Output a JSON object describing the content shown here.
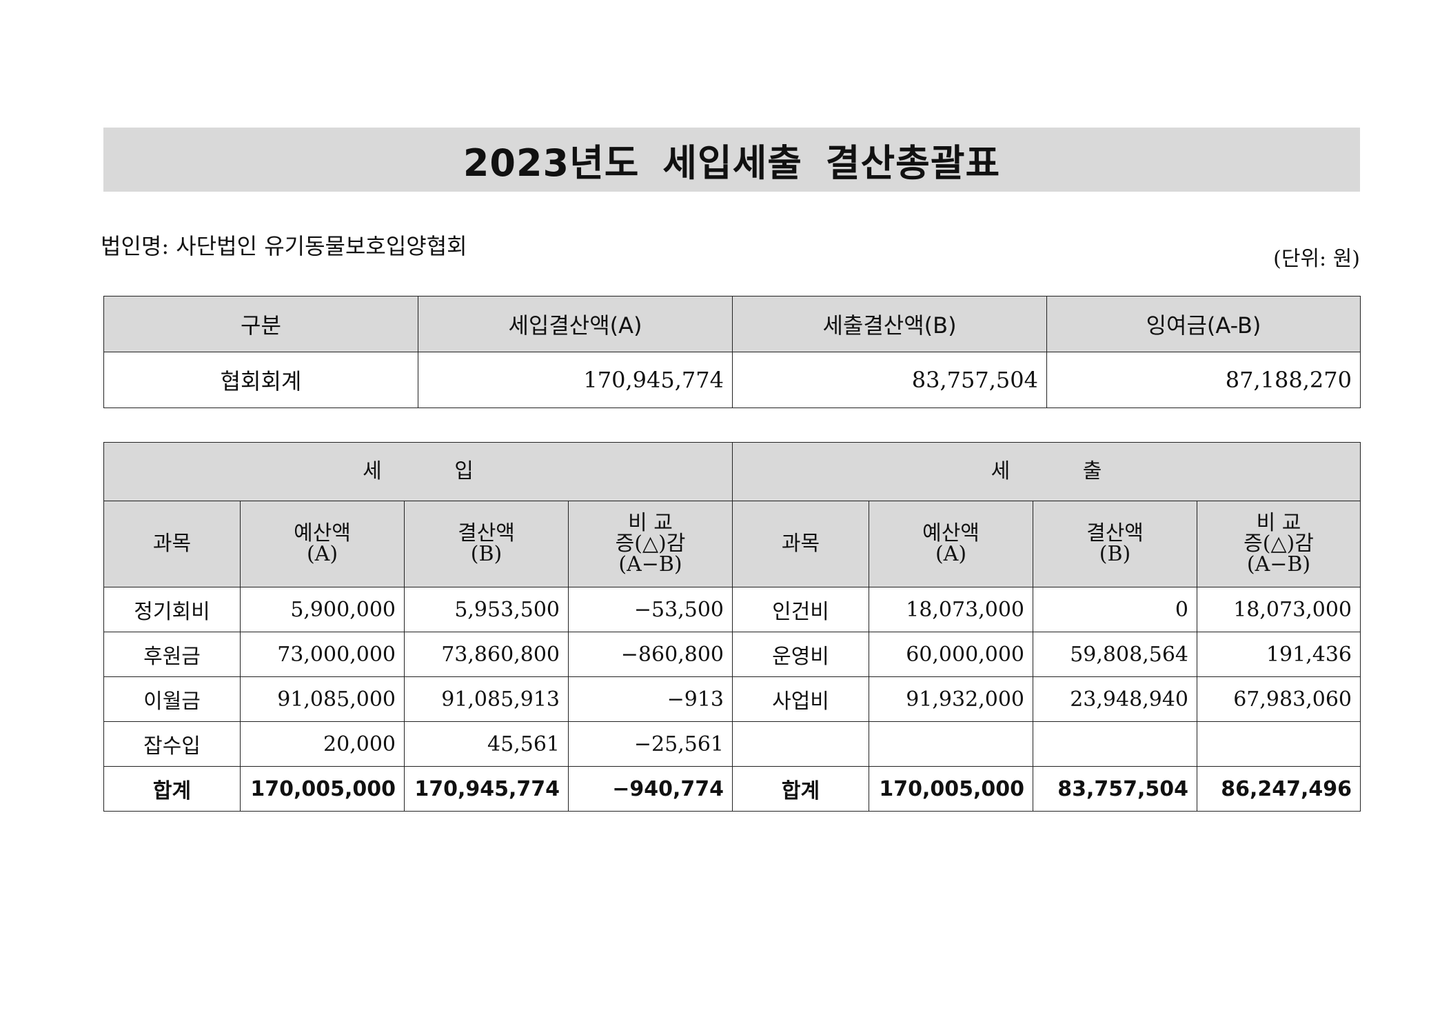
{
  "title": "2023년도 세입세출 결산총괄표",
  "org_label": "법인명: 사단법인 유기동물보호입양협회",
  "unit_label": "(단위: 원)",
  "summary": {
    "headers": [
      "구분",
      "세입결산액(A)",
      "세출결산액(B)",
      "잉여금(A-B)"
    ],
    "row": {
      "label": "협회회계",
      "revenue": "170,945,774",
      "expense": "83,757,504",
      "surplus": "87,188,270"
    }
  },
  "detail": {
    "revenue_group": "세 입",
    "expense_group": "세 출",
    "col_subject": "과목",
    "col_budget": [
      "예산액",
      "(A)"
    ],
    "col_settled": [
      "결산액",
      "(B)"
    ],
    "col_diff": [
      "비 교",
      "증(△)감",
      "(A−B)"
    ],
    "rows": [
      {
        "r_subj": "정기회비",
        "r_budget": "5,900,000",
        "r_settled": "5,953,500",
        "r_diff": "−53,500",
        "e_subj": "인건비",
        "e_budget": "18,073,000",
        "e_settled": "0",
        "e_diff": "18,073,000"
      },
      {
        "r_subj": "후원금",
        "r_budget": "73,000,000",
        "r_settled": "73,860,800",
        "r_diff": "−860,800",
        "e_subj": "운영비",
        "e_budget": "60,000,000",
        "e_settled": "59,808,564",
        "e_diff": "191,436"
      },
      {
        "r_subj": "이월금",
        "r_budget": "91,085,000",
        "r_settled": "91,085,913",
        "r_diff": "−913",
        "e_subj": "사업비",
        "e_budget": "91,932,000",
        "e_settled": "23,948,940",
        "e_diff": "67,983,060"
      },
      {
        "r_subj": "잡수입",
        "r_budget": "20,000",
        "r_settled": "45,561",
        "r_diff": "−25,561",
        "e_subj": "",
        "e_budget": "",
        "e_settled": "",
        "e_diff": ""
      }
    ],
    "total": {
      "r_subj": "합계",
      "r_budget": "170,005,000",
      "r_settled": "170,945,774",
      "r_diff": "−940,774",
      "e_subj": "합계",
      "e_budget": "170,005,000",
      "e_settled": "83,757,504",
      "e_diff": "86,247,496"
    }
  }
}
